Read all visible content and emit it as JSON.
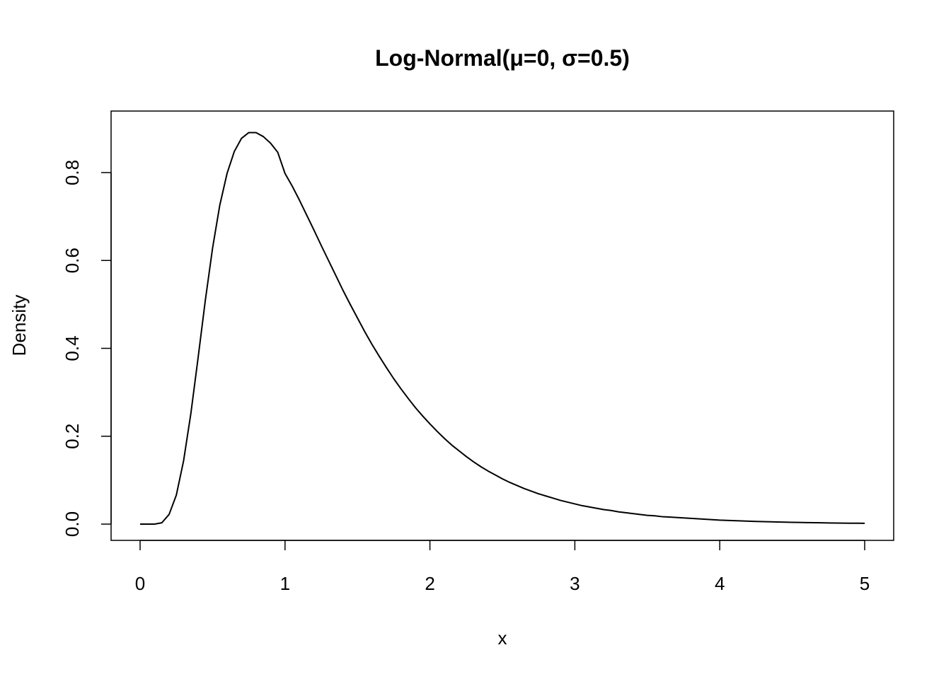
{
  "chart_data": {
    "type": "line",
    "title": "Log-Normal(μ=0, σ=0.5)",
    "xlabel": "x",
    "ylabel": "Density",
    "xlim": [
      0,
      5
    ],
    "ylim": [
      0,
      0.9
    ],
    "grid": false,
    "x_ticks": [
      0,
      1,
      2,
      3,
      4,
      5
    ],
    "x_tick_labels": [
      "0",
      "1",
      "2",
      "3",
      "4",
      "5"
    ],
    "y_ticks": [
      0.0,
      0.2,
      0.4,
      0.6,
      0.8
    ],
    "y_tick_labels": [
      "0.0",
      "0.2",
      "0.4",
      "0.6",
      "0.8"
    ],
    "series": [
      {
        "color": "#000000",
        "x": [
          0.0,
          0.05,
          0.1,
          0.15,
          0.2,
          0.25,
          0.3,
          0.35,
          0.4,
          0.45,
          0.5,
          0.55,
          0.6,
          0.65,
          0.7,
          0.75,
          0.8,
          0.85,
          0.9,
          0.95,
          1.0,
          1.05,
          1.1,
          1.15,
          1.2,
          1.25,
          1.3,
          1.35,
          1.4,
          1.45,
          1.5,
          1.55,
          1.6,
          1.65,
          1.7,
          1.75,
          1.8,
          1.85,
          1.9,
          1.95,
          2.0,
          2.05,
          2.1,
          2.15,
          2.2,
          2.25,
          2.3,
          2.35,
          2.4,
          2.45,
          2.5,
          2.55,
          2.6,
          2.65,
          2.7,
          2.75,
          2.8,
          2.85,
          2.9,
          2.95,
          3.0,
          3.05,
          3.1,
          3.15,
          3.2,
          3.25,
          3.3,
          3.35,
          3.4,
          3.45,
          3.5,
          3.55,
          3.6,
          3.65,
          3.7,
          3.75,
          3.8,
          3.85,
          3.9,
          3.95,
          4.0,
          4.05,
          4.1,
          4.15,
          4.2,
          4.25,
          4.3,
          4.35,
          4.4,
          4.45,
          4.5,
          4.55,
          4.6,
          4.65,
          4.7,
          4.75,
          4.8,
          4.85,
          4.9,
          4.95,
          5.0
        ],
        "y": [
          0.0,
          0.0,
          0.0,
          0.003,
          0.022,
          0.066,
          0.144,
          0.251,
          0.378,
          0.509,
          0.628,
          0.726,
          0.798,
          0.848,
          0.878,
          0.891,
          0.891,
          0.882,
          0.867,
          0.846,
          0.798,
          0.769,
          0.737,
          0.703,
          0.669,
          0.634,
          0.6,
          0.566,
          0.532,
          0.5,
          0.469,
          0.438,
          0.409,
          0.382,
          0.356,
          0.331,
          0.308,
          0.286,
          0.265,
          0.246,
          0.228,
          0.211,
          0.195,
          0.18,
          0.167,
          0.154,
          0.142,
          0.131,
          0.121,
          0.112,
          0.103,
          0.095,
          0.088,
          0.081,
          0.075,
          0.069,
          0.064,
          0.059,
          0.054,
          0.05,
          0.046,
          0.042,
          0.039,
          0.036,
          0.033,
          0.031,
          0.028,
          0.026,
          0.024,
          0.022,
          0.02,
          0.019,
          0.017,
          0.016,
          0.015,
          0.014,
          0.013,
          0.012,
          0.011,
          0.01,
          0.009,
          0.0085,
          0.0078,
          0.0072,
          0.0066,
          0.0061,
          0.0056,
          0.0052,
          0.0048,
          0.0044,
          0.0041,
          0.0038,
          0.0035,
          0.0032,
          0.003,
          0.0027,
          0.0025,
          0.0023,
          0.0021,
          0.002,
          0.0018
        ]
      }
    ]
  }
}
